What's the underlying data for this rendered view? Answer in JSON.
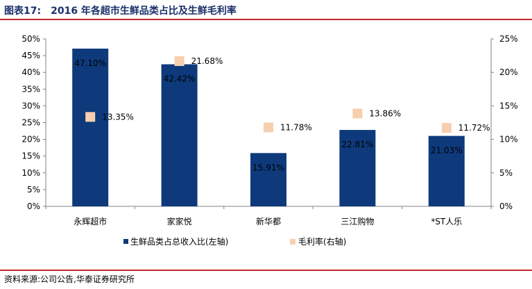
{
  "header": {
    "fig_label": "图表17:",
    "fig_text": "2016 年各超市生鲜品类占比及生鲜毛利率"
  },
  "footer": {
    "source": "资料来源:公司公告,华泰证券研究所"
  },
  "chart_data": {
    "type": "bar",
    "categories": [
      "永辉超市",
      "家家悦",
      "新华都",
      "三江购物",
      "*ST人乐"
    ],
    "series": [
      {
        "name": "生鲜品类占总收入比(左轴)",
        "chart_type": "bar",
        "axis": "left",
        "values": [
          47.1,
          42.42,
          15.91,
          22.81,
          21.03
        ],
        "labels": [
          "47.10%",
          "42.42%",
          "15.91%",
          "22.81%",
          "21.03%"
        ],
        "color": "#0e3a7c"
      },
      {
        "name": "毛利率(右轴)",
        "chart_type": "scatter",
        "axis": "right",
        "values": [
          13.35,
          21.68,
          11.78,
          13.86,
          11.72
        ],
        "labels": [
          "13.35%",
          "21.68%",
          "11.78%",
          "13.86%",
          "11.72%"
        ],
        "color": "#f7cfae"
      }
    ],
    "y_left": {
      "min": 0,
      "max": 50,
      "step": 5,
      "ticks": [
        "0%",
        "5%",
        "10%",
        "15%",
        "20%",
        "25%",
        "30%",
        "35%",
        "40%",
        "45%",
        "50%"
      ]
    },
    "y_right": {
      "min": 0,
      "max": 25,
      "step": 5,
      "ticks": [
        "0%",
        "5%",
        "10%",
        "15%",
        "20%",
        "25%"
      ]
    },
    "grid": false,
    "legend": "bottom"
  }
}
